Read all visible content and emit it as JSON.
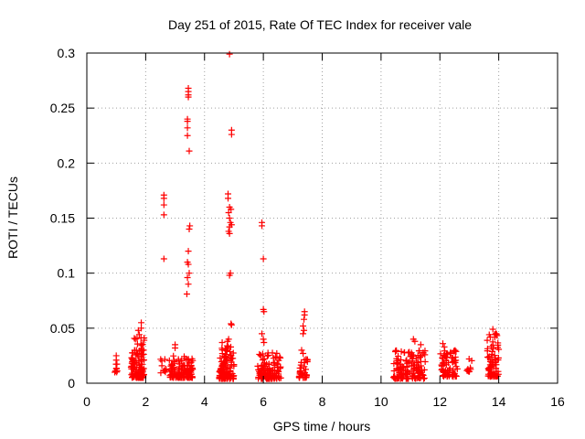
{
  "chart_data": {
    "type": "scatter",
    "title": "Day 251 of 2015, Rate Of TEC Index for receiver vale",
    "xlabel": "GPS time / hours",
    "ylabel": "ROTI / TECUs",
    "xlim": [
      0,
      16
    ],
    "ylim": [
      0,
      0.3
    ],
    "xticks": [
      0,
      2,
      4,
      6,
      8,
      10,
      12,
      14,
      16
    ],
    "xtick_labels": [
      "0",
      "2",
      "4",
      "6",
      "8",
      "10",
      "12",
      "14",
      "16"
    ],
    "yticks": [
      0,
      0.05,
      0.1,
      0.15,
      0.2,
      0.25,
      0.3
    ],
    "ytick_labels": [
      "0",
      "0.05",
      "0.1",
      "0.15",
      "0.2",
      "0.25",
      "0.3"
    ],
    "grid": true,
    "marker": "+",
    "color": "#ff0000",
    "clusters": [
      {
        "x_range": [
          0.95,
          1.05
        ],
        "y_range": [
          0.01,
          0.018
        ],
        "count": 8
      },
      {
        "x": 1.0,
        "y_values": [
          0.021,
          0.025
        ]
      },
      {
        "x_range": [
          1.5,
          1.95
        ],
        "y_range": [
          0.005,
          0.03
        ],
        "count": 120
      },
      {
        "x_range": [
          1.6,
          1.95
        ],
        "y_range": [
          0.03,
          0.046
        ],
        "count": 14
      },
      {
        "x_range": [
          2.5,
          2.7
        ],
        "y_range": [
          0.008,
          0.022
        ],
        "count": 10
      },
      {
        "x_range": [
          2.8,
          3.6
        ],
        "y_range": [
          0.005,
          0.025
        ],
        "count": 130
      },
      {
        "x_range": [
          4.5,
          5.0
        ],
        "y_range": [
          0.004,
          0.035
        ],
        "count": 110
      },
      {
        "x_range": [
          5.8,
          6.6
        ],
        "y_range": [
          0.004,
          0.028
        ],
        "count": 120
      },
      {
        "x_range": [
          7.2,
          7.5
        ],
        "y_range": [
          0.005,
          0.022
        ],
        "count": 35
      },
      {
        "x_range": [
          10.4,
          11.5
        ],
        "y_range": [
          0.004,
          0.03
        ],
        "count": 140
      },
      {
        "x_range": [
          12.0,
          12.6
        ],
        "y_range": [
          0.006,
          0.03
        ],
        "count": 70
      },
      {
        "x_range": [
          12.9,
          13.1
        ],
        "y_range": [
          0.01,
          0.025
        ],
        "count": 10
      },
      {
        "x_range": [
          13.6,
          14.0
        ],
        "y_range": [
          0.006,
          0.045
        ],
        "count": 70
      }
    ],
    "outliers": [
      {
        "x": 1.85,
        "y": 0.055
      },
      {
        "x": 1.85,
        "y": 0.05
      },
      {
        "x": 1.75,
        "y": 0.048
      },
      {
        "x": 2.62,
        "y": 0.171
      },
      {
        "x": 2.62,
        "y": 0.168
      },
      {
        "x": 2.62,
        "y": 0.162
      },
      {
        "x": 2.62,
        "y": 0.153
      },
      {
        "x": 2.62,
        "y": 0.113
      },
      {
        "x": 3.0,
        "y": 0.035
      },
      {
        "x": 3.0,
        "y": 0.032
      },
      {
        "x": 3.45,
        "y": 0.268
      },
      {
        "x": 3.45,
        "y": 0.265
      },
      {
        "x": 3.45,
        "y": 0.262
      },
      {
        "x": 3.45,
        "y": 0.26
      },
      {
        "x": 3.42,
        "y": 0.24
      },
      {
        "x": 3.42,
        "y": 0.238
      },
      {
        "x": 3.42,
        "y": 0.232
      },
      {
        "x": 3.42,
        "y": 0.225
      },
      {
        "x": 3.48,
        "y": 0.211
      },
      {
        "x": 3.5,
        "y": 0.143
      },
      {
        "x": 3.48,
        "y": 0.14
      },
      {
        "x": 3.45,
        "y": 0.12
      },
      {
        "x": 3.42,
        "y": 0.11
      },
      {
        "x": 3.45,
        "y": 0.108
      },
      {
        "x": 3.48,
        "y": 0.1
      },
      {
        "x": 3.42,
        "y": 0.096
      },
      {
        "x": 3.45,
        "y": 0.09
      },
      {
        "x": 3.4,
        "y": 0.081
      },
      {
        "x": 4.85,
        "y": 0.299
      },
      {
        "x": 4.92,
        "y": 0.23
      },
      {
        "x": 4.92,
        "y": 0.226
      },
      {
        "x": 4.8,
        "y": 0.172
      },
      {
        "x": 4.8,
        "y": 0.168
      },
      {
        "x": 4.85,
        "y": 0.16
      },
      {
        "x": 4.9,
        "y": 0.158
      },
      {
        "x": 4.82,
        "y": 0.155
      },
      {
        "x": 4.85,
        "y": 0.15
      },
      {
        "x": 4.88,
        "y": 0.146
      },
      {
        "x": 4.92,
        "y": 0.144
      },
      {
        "x": 4.85,
        "y": 0.142
      },
      {
        "x": 4.82,
        "y": 0.138
      },
      {
        "x": 4.85,
        "y": 0.136
      },
      {
        "x": 4.88,
        "y": 0.1
      },
      {
        "x": 4.85,
        "y": 0.098
      },
      {
        "x": 4.9,
        "y": 0.054
      },
      {
        "x": 4.92,
        "y": 0.053
      },
      {
        "x": 4.82,
        "y": 0.04
      },
      {
        "x": 4.78,
        "y": 0.038
      },
      {
        "x": 4.6,
        "y": 0.037
      },
      {
        "x": 5.95,
        "y": 0.146
      },
      {
        "x": 5.95,
        "y": 0.143
      },
      {
        "x": 6.0,
        "y": 0.113
      },
      {
        "x": 6.0,
        "y": 0.067
      },
      {
        "x": 6.02,
        "y": 0.065
      },
      {
        "x": 5.95,
        "y": 0.045
      },
      {
        "x": 6.0,
        "y": 0.04
      },
      {
        "x": 6.02,
        "y": 0.037
      },
      {
        "x": 7.4,
        "y": 0.065
      },
      {
        "x": 7.4,
        "y": 0.062
      },
      {
        "x": 7.38,
        "y": 0.058
      },
      {
        "x": 7.35,
        "y": 0.052
      },
      {
        "x": 7.38,
        "y": 0.048
      },
      {
        "x": 7.35,
        "y": 0.045
      },
      {
        "x": 7.3,
        "y": 0.03
      },
      {
        "x": 7.35,
        "y": 0.027
      },
      {
        "x": 11.1,
        "y": 0.04
      },
      {
        "x": 11.15,
        "y": 0.038
      },
      {
        "x": 11.35,
        "y": 0.035
      },
      {
        "x": 12.1,
        "y": 0.036
      },
      {
        "x": 12.15,
        "y": 0.033
      },
      {
        "x": 13.8,
        "y": 0.049
      },
      {
        "x": 13.9,
        "y": 0.045
      }
    ]
  }
}
